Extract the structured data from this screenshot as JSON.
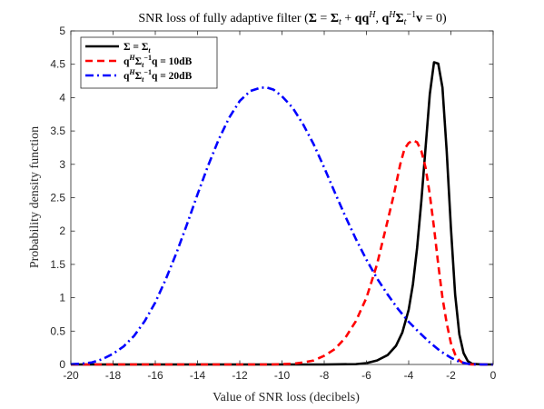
{
  "chart_data": {
    "type": "line",
    "title_parts": [
      {
        "t": "SNR loss of fully adaptive filter ("
      },
      {
        "t": "Σ",
        "b": 1
      },
      {
        "t": " = "
      },
      {
        "t": "Σ",
        "b": 1
      },
      {
        "t": "t",
        "i": 1,
        "sub": 1
      },
      {
        "t": " + "
      },
      {
        "t": "qq",
        "b": 1
      },
      {
        "t": "H",
        "i": 1,
        "sup": 1
      },
      {
        "t": ", "
      },
      {
        "t": "q",
        "b": 1
      },
      {
        "t": "H",
        "i": 1,
        "sup": 1
      },
      {
        "t": "Σ",
        "b": 1
      },
      {
        "t": "t",
        "i": 1,
        "sub": 1
      },
      {
        "t": "−1",
        "sup": 1
      },
      {
        "t": "v",
        "b": 1
      },
      {
        "t": " = 0)"
      }
    ],
    "xlabel": "Value of SNR loss (decibels)",
    "ylabel": "Probability density function",
    "xlim": [
      -20,
      0
    ],
    "ylim": [
      0,
      5
    ],
    "xticks": [
      -20,
      -18,
      -16,
      -14,
      -12,
      -10,
      -8,
      -6,
      -4,
      -2,
      0
    ],
    "yticks": [
      0,
      0.5,
      1,
      1.5,
      2,
      2.5,
      3,
      3.5,
      4,
      4.5,
      5
    ],
    "grid": false,
    "legend_position": "top-left",
    "series": [
      {
        "name_parts": [
          {
            "t": "Σ",
            "b": 1
          },
          {
            "t": " = "
          },
          {
            "t": "Σ",
            "b": 1
          },
          {
            "t": "t",
            "i": 1,
            "sub": 1
          }
        ],
        "color": "#000000",
        "dash": "solid",
        "x": [
          -20,
          -8,
          -6.5,
          -6.0,
          -5.5,
          -5.0,
          -4.6,
          -4.3,
          -4.0,
          -3.8,
          -3.6,
          -3.4,
          -3.2,
          -3.0,
          -2.8,
          -2.6,
          -2.4,
          -2.2,
          -2.0,
          -1.8,
          -1.6,
          -1.4,
          -1.2,
          -1.0,
          -0.5,
          0
        ],
        "y": [
          0,
          0,
          0.005,
          0.02,
          0.06,
          0.14,
          0.28,
          0.48,
          0.82,
          1.2,
          1.75,
          2.45,
          3.25,
          4.05,
          4.53,
          4.51,
          4.15,
          3.2,
          2.05,
          1.05,
          0.45,
          0.17,
          0.05,
          0.01,
          0,
          0
        ]
      },
      {
        "name_parts": [
          {
            "t": "q",
            "b": 1
          },
          {
            "t": "H",
            "i": 1,
            "sup": 1
          },
          {
            "t": "Σ",
            "b": 1
          },
          {
            "t": "t",
            "i": 1,
            "sub": 1
          },
          {
            "t": "−1",
            "sup": 1
          },
          {
            "t": "q",
            "b": 1
          },
          {
            "t": " = 10dB"
          }
        ],
        "color": "#ff0000",
        "dash": "dashed",
        "x": [
          -20,
          -10.5,
          -9.5,
          -9.0,
          -8.5,
          -8.0,
          -7.5,
          -7.0,
          -6.5,
          -6.0,
          -5.5,
          -5.0,
          -4.7,
          -4.4,
          -4.2,
          -4.0,
          -3.8,
          -3.6,
          -3.4,
          -3.2,
          -3.0,
          -2.8,
          -2.6,
          -2.4,
          -2.2,
          -2.0,
          -1.8,
          -1.6,
          -1.4,
          -1.2,
          -1.0,
          -0.5,
          0
        ],
        "y": [
          0,
          0,
          0.01,
          0.03,
          0.06,
          0.13,
          0.23,
          0.4,
          0.65,
          1.0,
          1.5,
          2.15,
          2.55,
          3.0,
          3.23,
          3.32,
          3.36,
          3.33,
          3.2,
          2.95,
          2.55,
          2.05,
          1.5,
          1.0,
          0.62,
          0.32,
          0.15,
          0.06,
          0.02,
          0.005,
          0,
          0,
          0
        ]
      },
      {
        "name_parts": [
          {
            "t": "q",
            "b": 1
          },
          {
            "t": "H",
            "i": 1,
            "sup": 1
          },
          {
            "t": "Σ",
            "b": 1
          },
          {
            "t": "t",
            "i": 1,
            "sub": 1
          },
          {
            "t": "−1",
            "sup": 1
          },
          {
            "t": "q",
            "b": 1
          },
          {
            "t": " = 20dB"
          }
        ],
        "color": "#0000ff",
        "dash": "dashdot",
        "x": [
          -20,
          -19.5,
          -19.0,
          -18.5,
          -18.0,
          -17.5,
          -17.0,
          -16.5,
          -16.0,
          -15.5,
          -15.0,
          -14.5,
          -14.0,
          -13.5,
          -13.0,
          -12.5,
          -12.0,
          -11.5,
          -11.0,
          -10.7,
          -10.4,
          -10.0,
          -9.5,
          -9.0,
          -8.5,
          -8.0,
          -7.5,
          -7.0,
          -6.5,
          -6.0,
          -5.5,
          -5.0,
          -4.5,
          -4.0,
          -3.5,
          -3.0,
          -2.5,
          -2.0,
          -1.6,
          -1.2,
          -1.0,
          -0.8,
          -0.5,
          0
        ],
        "y": [
          0.005,
          0.01,
          0.03,
          0.08,
          0.16,
          0.27,
          0.43,
          0.65,
          0.93,
          1.28,
          1.67,
          2.1,
          2.55,
          2.98,
          3.37,
          3.7,
          3.95,
          4.1,
          4.15,
          4.15,
          4.12,
          4.02,
          3.85,
          3.6,
          3.3,
          2.95,
          2.58,
          2.22,
          1.88,
          1.57,
          1.29,
          1.05,
          0.83,
          0.64,
          0.48,
          0.33,
          0.2,
          0.1,
          0.04,
          0.01,
          0.005,
          0,
          0,
          0
        ]
      }
    ]
  }
}
